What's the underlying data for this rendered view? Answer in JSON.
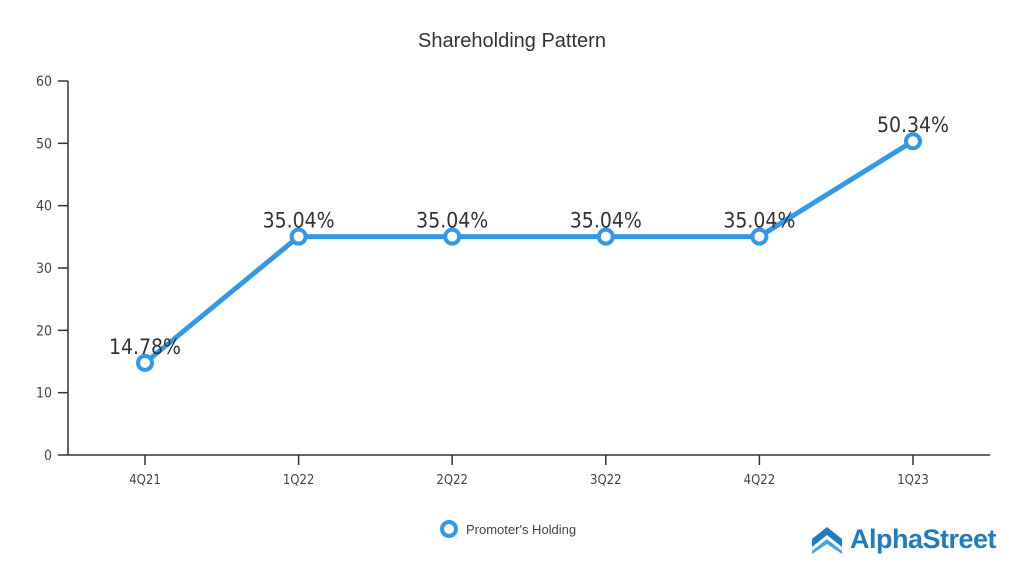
{
  "chart_data": {
    "type": "line",
    "title": "Shareholding Pattern",
    "categories": [
      "4Q21",
      "1Q22",
      "2Q22",
      "3Q22",
      "4Q22",
      "1Q23"
    ],
    "series": [
      {
        "name": "Promoter's Holding",
        "values": [
          14.78,
          35.04,
          35.04,
          35.04,
          35.04,
          50.34
        ],
        "labels": [
          "14.78%",
          "35.04%",
          "35.04%",
          "35.04%",
          "35.04%",
          "50.34%"
        ],
        "color": "#3399e6"
      }
    ],
    "ylim": [
      0,
      60
    ],
    "yticks": [
      0,
      10,
      20,
      30,
      40,
      50,
      60
    ],
    "xlabel": "",
    "ylabel": "",
    "grid": false,
    "legend": "bottom"
  },
  "branding": {
    "logo_text": "AlphaStreet",
    "logo_color": "#1f7cc1"
  }
}
